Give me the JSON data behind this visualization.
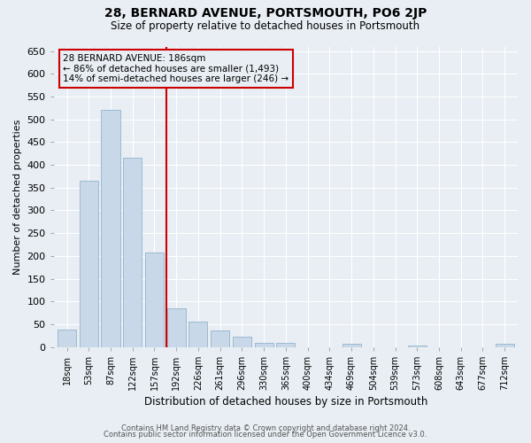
{
  "title": "28, BERNARD AVENUE, PORTSMOUTH, PO6 2JP",
  "subtitle": "Size of property relative to detached houses in Portsmouth",
  "xlabel": "Distribution of detached houses by size in Portsmouth",
  "ylabel": "Number of detached properties",
  "bar_labels": [
    "18sqm",
    "53sqm",
    "87sqm",
    "122sqm",
    "157sqm",
    "192sqm",
    "226sqm",
    "261sqm",
    "296sqm",
    "330sqm",
    "365sqm",
    "400sqm",
    "434sqm",
    "469sqm",
    "504sqm",
    "539sqm",
    "573sqm",
    "608sqm",
    "643sqm",
    "677sqm",
    "712sqm"
  ],
  "bar_values": [
    38,
    365,
    520,
    415,
    208,
    85,
    55,
    37,
    22,
    9,
    9,
    0,
    0,
    7,
    0,
    0,
    3,
    0,
    0,
    0,
    7
  ],
  "bar_color": "#c8d8e8",
  "bar_edgecolor": "#92b4cc",
  "vline_color": "#cc0000",
  "vline_bar_index": 5,
  "ylim_max": 660,
  "ytick_step": 50,
  "annotation_title": "28 BERNARD AVENUE: 186sqm",
  "annotation_line1": "← 86% of detached houses are smaller (1,493)",
  "annotation_line2": "14% of semi-detached houses are larger (246) →",
  "annotation_box_edgecolor": "#cc0000",
  "footer_line1": "Contains HM Land Registry data © Crown copyright and database right 2024.",
  "footer_line2": "Contains public sector information licensed under the Open Government Licence v3.0.",
  "fig_bg": "#e8eef4",
  "plot_bg": "#e8eef4",
  "grid_color": "#ffffff"
}
